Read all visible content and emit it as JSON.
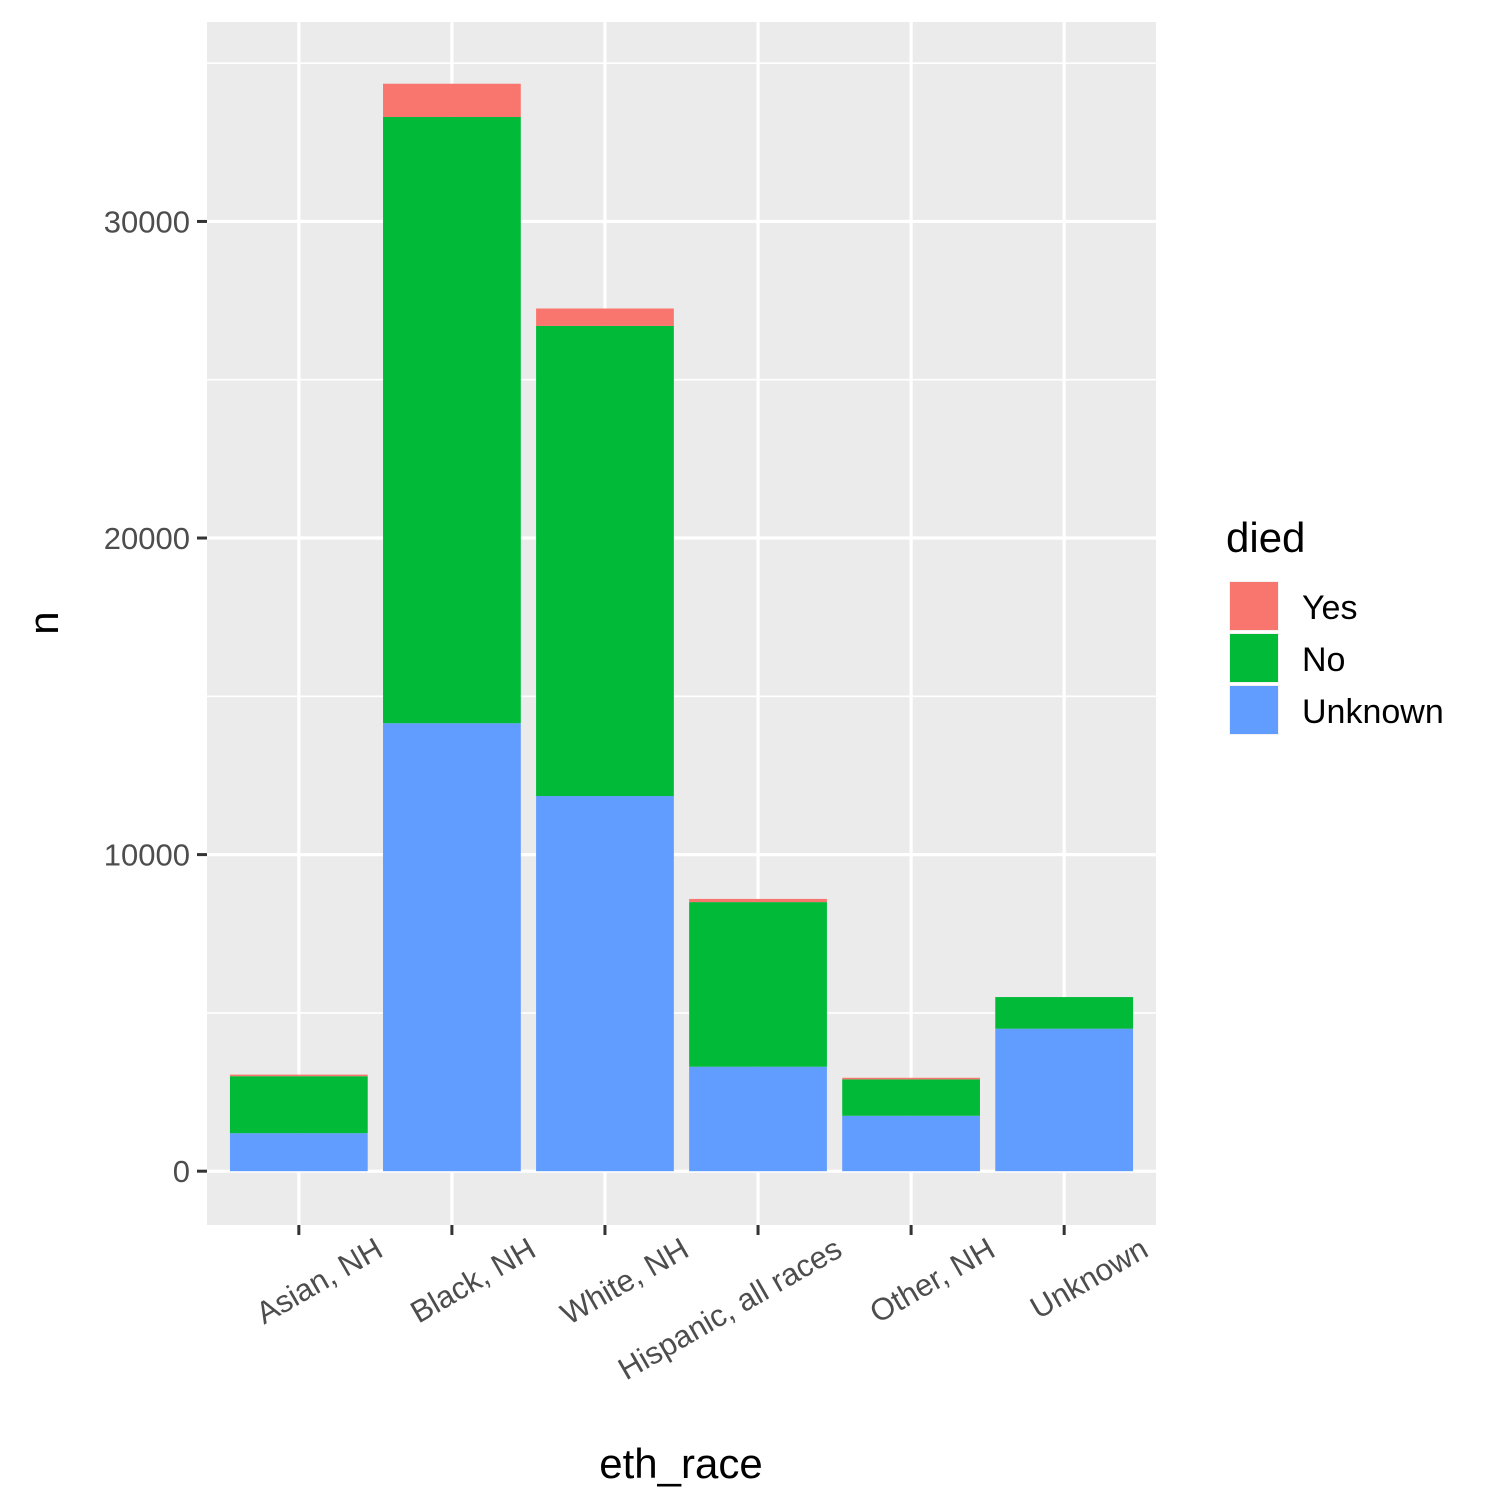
{
  "chart_data": {
    "type": "bar",
    "stacked": true,
    "xlabel": "eth_race",
    "ylabel": "n",
    "categories": [
      "Asian, NH",
      "Black, NH",
      "White, NH",
      "Hispanic, all races",
      "Other, NH",
      "Unknown"
    ],
    "series": [
      {
        "name": "Unknown",
        "color": "#619CFF",
        "values": [
          1200,
          14150,
          11850,
          3300,
          1750,
          4500
        ]
      },
      {
        "name": "No",
        "color": "#00BA38",
        "values": [
          1800,
          19150,
          14850,
          5200,
          1150,
          1000
        ]
      },
      {
        "name": "Yes",
        "color": "#F8766D",
        "values": [
          50,
          1050,
          550,
          100,
          50,
          0
        ]
      }
    ],
    "ylim": [
      -1700,
      36300
    ],
    "yticks": [
      0,
      10000,
      20000,
      30000
    ],
    "ytick_labels": [
      "0",
      "10000",
      "20000",
      "30000"
    ],
    "grid": true,
    "legend": {
      "title": "died",
      "position": "right",
      "entries": [
        {
          "label": "Yes",
          "color": "#F8766D"
        },
        {
          "label": "No",
          "color": "#00BA38"
        },
        {
          "label": "Unknown",
          "color": "#619CFF"
        }
      ]
    }
  }
}
